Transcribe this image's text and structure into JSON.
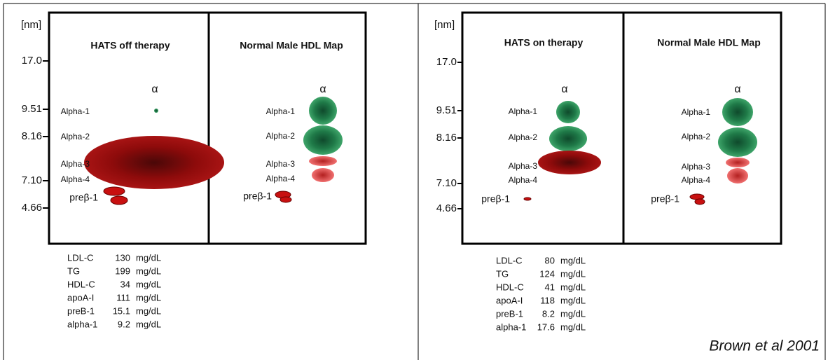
{
  "panels": [
    {
      "axis_unit": "[nm]",
      "axis_ticks": [
        "17.0",
        "9.51",
        "8.16",
        "7.10",
        "4.66"
      ],
      "maps": [
        {
          "title": "HATS off therapy",
          "alpha": "α",
          "labels": [
            "Alpha-1",
            "Alpha-2",
            "Alpha-3",
            "Alpha-4",
            "preβ-1"
          ]
        },
        {
          "title": "Normal Male HDL Map",
          "alpha": "α",
          "labels": [
            "Alpha-1",
            "Alpha-2",
            "Alpha-3",
            "Alpha-4",
            "preβ-1"
          ]
        }
      ],
      "labs": [
        [
          "LDL-C",
          "130",
          "mg/dL"
        ],
        [
          "TG",
          "199",
          "mg/dL"
        ],
        [
          "HDL-C",
          "34",
          "mg/dL"
        ],
        [
          "apoA-I",
          "111",
          "mg/dL"
        ],
        [
          "preB-1",
          "15.1",
          "mg/dL"
        ],
        [
          "alpha-1",
          "9.2",
          "mg/dL"
        ]
      ]
    },
    {
      "axis_unit": "[nm]",
      "axis_ticks": [
        "17.0",
        "9.51",
        "8.16",
        "7.10",
        "4.66"
      ],
      "maps": [
        {
          "title": "HATS on therapy",
          "alpha": "α",
          "labels": [
            "Alpha-1",
            "Alpha-2",
            "Alpha-3",
            "Alpha-4",
            "preβ-1"
          ]
        },
        {
          "title": "Normal Male HDL Map",
          "alpha": "α",
          "labels": [
            "Alpha-1",
            "Alpha-2",
            "Alpha-3",
            "Alpha-4",
            "preβ-1"
          ]
        }
      ],
      "labs": [
        [
          "LDL-C",
          "80",
          "mg/dL"
        ],
        [
          "TG",
          "124",
          "mg/dL"
        ],
        [
          "HDL-C",
          "41",
          "mg/dL"
        ],
        [
          "apoA-I",
          "118",
          "mg/dL"
        ],
        [
          "preB-1",
          "8.2",
          "mg/dL"
        ],
        [
          "alpha-1",
          "17.6",
          "mg/dL"
        ]
      ]
    }
  ],
  "citation": "Brown et al 2001"
}
